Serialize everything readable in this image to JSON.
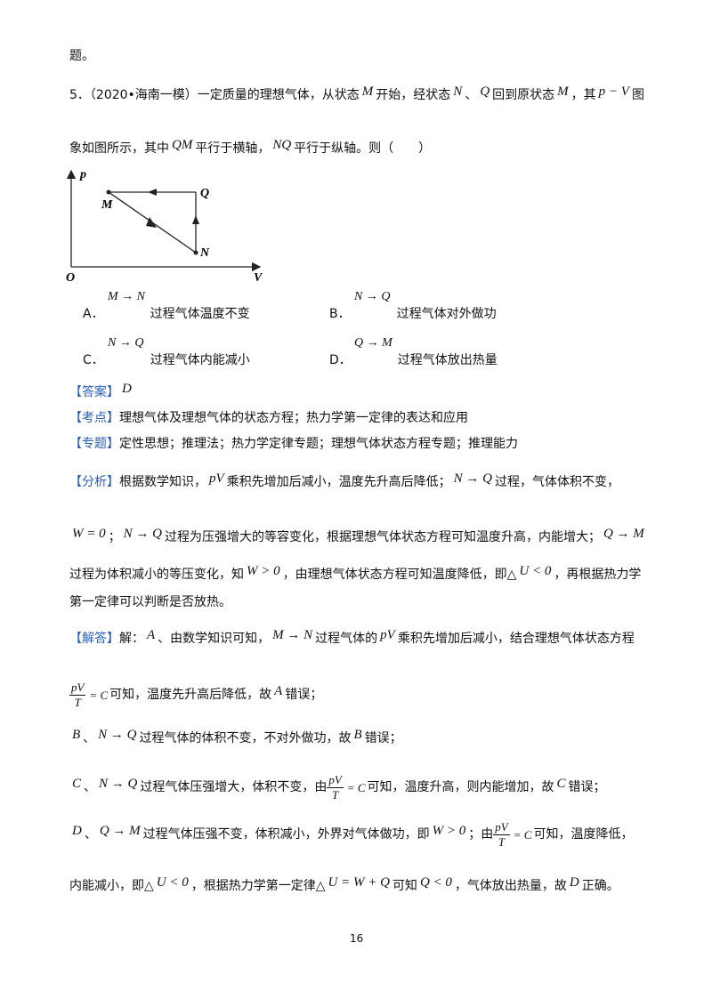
{
  "lines": [
    [
      {
        "text": "题。"
      }
    ],
    [
      {
        "text": "5．（2020•海南一模）一定质量的理想气体，从状态"
      },
      {
        "math": "M"
      },
      {
        "text": "开始，经状态"
      },
      {
        "math": "N"
      },
      {
        "text": "、"
      },
      {
        "math": "Q"
      },
      {
        "text": "回到原状态"
      },
      {
        "math": "M"
      },
      {
        "text": "，其"
      },
      {
        "math": "p − V"
      },
      {
        "text": "图"
      }
    ],
    [
      {
        "text": "象如图所示，其中"
      },
      {
        "math": "QM"
      },
      {
        "text": "平行于横轴，"
      },
      {
        "math": "NQ"
      },
      {
        "text": "平行于纵轴。则（　　）"
      }
    ]
  ],
  "figure": {
    "y_axis": "p",
    "x_axis": "V",
    "origin": "O",
    "points": [
      "M",
      "Q",
      "N"
    ]
  },
  "options": [
    {
      "letter": "A．",
      "math": "M → N",
      "text": "过程气体温度不变"
    },
    {
      "letter": "B．",
      "math": "N → Q",
      "text": "过程气体对外做功"
    },
    {
      "letter": "C．",
      "math": "N → Q",
      "text": "过程气体内能减小"
    },
    {
      "letter": "D．",
      "math": "Q → M",
      "text": "过程气体放出热量"
    }
  ],
  "solution": [
    [
      {
        "tag": "【答案】"
      },
      {
        "math": "D"
      }
    ],
    [
      {
        "tag": "【考点】"
      },
      {
        "text": "理想气体及理想气体的状态方程；热力学第一定律的表达和应用"
      }
    ],
    [
      {
        "tag": "【专题】"
      },
      {
        "text": "定性思想；推理法；热力学定律专题；理想气体状态方程专题；推理能力"
      }
    ],
    [
      {
        "tag": "【分析】"
      },
      {
        "text": "根据数学知识，"
      },
      {
        "math": "pV"
      },
      {
        "text": "乘积先增加后减小，温度先升高后降低；"
      },
      {
        "math": "N → Q"
      },
      {
        "text": "过程，气体体积不变，"
      }
    ],
    [
      {
        "math": "W = 0"
      },
      {
        "text": "；"
      },
      {
        "math": "N → Q"
      },
      {
        "text": "过程为压强增大的等容变化，根据理想气体状态方程可知温度升高，内能增大；"
      },
      {
        "math": "Q → M"
      }
    ],
    [
      {
        "text": "过程为体积减小的等压变化，知"
      },
      {
        "math": "W > 0"
      },
      {
        "text": "，由理想气体状态方程可知温度降低，即△"
      },
      {
        "math": "U < 0"
      },
      {
        "text": "，再根据热力学"
      }
    ],
    [
      {
        "text": "第一定律可以判断是否放热。"
      }
    ],
    [
      {
        "tag": "【解答】"
      },
      {
        "text": "解："
      },
      {
        "math": "A"
      },
      {
        "text": "、由数学知识可知，"
      },
      {
        "math": "M → N"
      },
      {
        "text": "过程气体的"
      },
      {
        "math": "pV"
      },
      {
        "text": "乘积先增加后减小，结合理想气体状态方程"
      }
    ],
    [
      {
        "num": "pV",
        "den": "T",
        "rest": "= C"
      },
      {
        "text": "可知，温度先升高后降低，故"
      },
      {
        "math": "A"
      },
      {
        "text": "错误；"
      }
    ],
    [
      {
        "math": "B"
      },
      {
        "text": "、"
      },
      {
        "math": "N → Q"
      },
      {
        "text": "过程气体的体积不变，不对外做功，故"
      },
      {
        "math": "B"
      },
      {
        "text": "错误；"
      }
    ],
    [
      {
        "math": "C"
      },
      {
        "text": "、"
      },
      {
        "math": "N → Q"
      },
      {
        "text": "过程气体压强增大，体积不变，由"
      },
      {
        "num": "pV",
        "den": "T",
        "rest": "= C"
      },
      {
        "text": "可知，温度升高，则内能增加，故"
      },
      {
        "math": "C"
      },
      {
        "text": "错误；"
      }
    ],
    [
      {
        "math": "D"
      },
      {
        "text": "、"
      },
      {
        "math": "Q → M"
      },
      {
        "text": "过程气体压强不变，体积减小，外界对气体做功，即"
      },
      {
        "math": "W > 0"
      },
      {
        "text": "；由"
      },
      {
        "num": "pV",
        "den": "T",
        "rest": "= C"
      },
      {
        "text": "可知，温度降低，"
      }
    ],
    [
      {
        "text": "内能减小，即△"
      },
      {
        "math": "U < 0"
      },
      {
        "text": "，根据热力学第一定律△"
      },
      {
        "math": "U = W + Q"
      },
      {
        "text": "可知"
      },
      {
        "math": "Q < 0"
      },
      {
        "text": "，气体放出热量，故"
      },
      {
        "math": "D"
      },
      {
        "text": "正确。"
      }
    ]
  ],
  "page_number": "16"
}
